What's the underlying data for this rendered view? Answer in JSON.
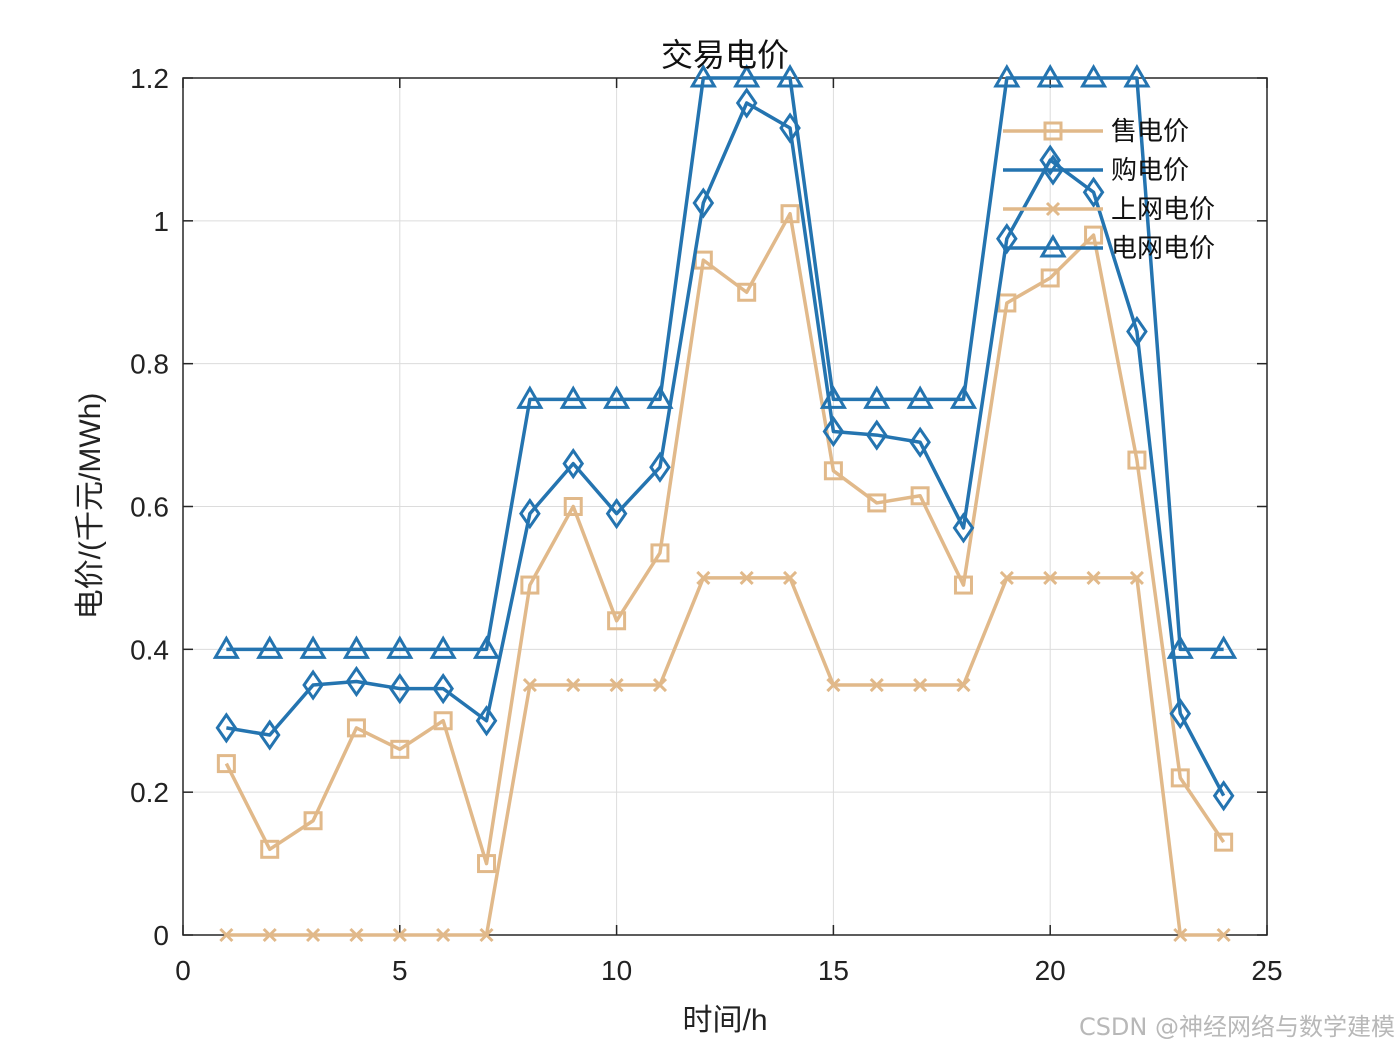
{
  "chart_data": {
    "type": "line",
    "title": "交易电价",
    "xlabel": "时间/h",
    "ylabel": "电价/(千元/MWh)",
    "xlim": [
      0,
      25
    ],
    "ylim": [
      0,
      1.2
    ],
    "xticks": [
      0,
      5,
      10,
      15,
      20,
      25
    ],
    "yticks": [
      0,
      0.2,
      0.4,
      0.6,
      0.8,
      1,
      1.2
    ],
    "grid": true,
    "legend_position": "top-right",
    "x": [
      1,
      2,
      3,
      4,
      5,
      6,
      7,
      8,
      9,
      10,
      11,
      12,
      13,
      14,
      15,
      16,
      17,
      18,
      19,
      20,
      21,
      22,
      23,
      24
    ],
    "series": [
      {
        "name": "售电价",
        "color": "#E1B98A",
        "marker": "square",
        "values": [
          0.24,
          0.12,
          0.16,
          0.29,
          0.26,
          0.3,
          0.1,
          0.49,
          0.6,
          0.44,
          0.535,
          0.945,
          0.9,
          1.01,
          0.65,
          0.605,
          0.615,
          0.49,
          0.885,
          0.92,
          0.98,
          0.665,
          0.22,
          0.13
        ]
      },
      {
        "name": "购电价",
        "color": "#2474B0",
        "marker": "diamond",
        "values": [
          0.29,
          0.28,
          0.35,
          0.355,
          0.345,
          0.345,
          0.3,
          0.59,
          0.66,
          0.59,
          0.655,
          1.025,
          1.165,
          1.13,
          0.705,
          0.7,
          0.69,
          0.57,
          0.975,
          1.085,
          1.04,
          0.845,
          0.31,
          0.195
        ]
      },
      {
        "name": "上网电价",
        "color": "#E1B98A",
        "marker": "x",
        "values": [
          0,
          0,
          0,
          0,
          0,
          0,
          0,
          0.35,
          0.35,
          0.35,
          0.35,
          0.5,
          0.5,
          0.5,
          0.35,
          0.35,
          0.35,
          0.35,
          0.5,
          0.5,
          0.5,
          0.5,
          0,
          0
        ]
      },
      {
        "name": "电网电价",
        "color": "#2474B0",
        "marker": "triangle",
        "values": [
          0.4,
          0.4,
          0.4,
          0.4,
          0.4,
          0.4,
          0.4,
          0.75,
          0.75,
          0.75,
          0.75,
          1.2,
          1.2,
          1.2,
          0.75,
          0.75,
          0.75,
          0.75,
          1.2,
          1.2,
          1.2,
          1.2,
          0.4,
          0.4
        ]
      }
    ]
  },
  "watermark": "CSDN @神经网络与数学建模"
}
